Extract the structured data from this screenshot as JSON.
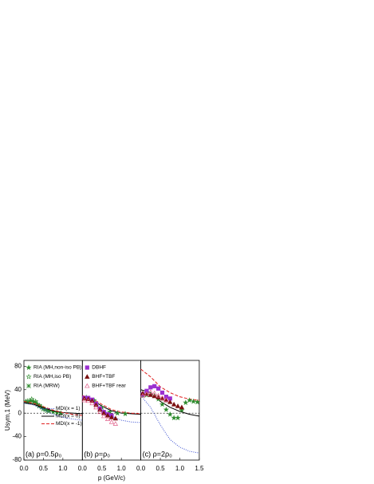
{
  "chart_data": [
    {
      "type": "line",
      "annotation": "(a) ρ=0.5ρ₀",
      "ylabel": "Usym,1 (MeV)",
      "legend": true,
      "xlim": [
        0,
        1.5
      ],
      "ylim": [
        -80,
        90
      ],
      "xticks": [
        {
          "value": 0,
          "label": "0.0"
        },
        {
          "value": 0.5,
          "label": "0.5"
        },
        {
          "value": 1,
          "label": "1.0"
        }
      ],
      "yticks": [
        -80,
        -40,
        0,
        40,
        80
      ],
      "series": [
        {
          "name": "RIA (MH,non-iso PB)",
          "color": "#2e8b2e",
          "marker": "star",
          "x": [
            0.05,
            0.15,
            0.25,
            0.35,
            0.45,
            0.55,
            0.65,
            0.75,
            0.85,
            0.95
          ],
          "values": [
            20,
            20,
            19,
            15,
            10,
            6,
            4,
            2,
            1,
            0
          ]
        },
        {
          "name": "RIA (MH,iso PB)",
          "color": "#2e8b2e",
          "marker": "open-star",
          "x": [
            0.1,
            0.2,
            0.3,
            0.4,
            0.5
          ],
          "values": [
            21,
            24,
            20,
            13,
            8
          ]
        },
        {
          "name": "RIA (MRW)",
          "color": "#2e8b2e",
          "marker": "x-star",
          "x": [
            0.1,
            0.2,
            0.3,
            0.4,
            0.5,
            0.6
          ],
          "values": [
            19,
            21,
            18,
            12,
            7,
            4
          ]
        },
        {
          "name": "MDI(x = 1)",
          "color": "#3a4fd0",
          "style": "dotted",
          "x": [
            0,
            0.25,
            0.5,
            0.75,
            1,
            1.25,
            1.5
          ],
          "values": [
            17,
            14,
            6,
            -2,
            -7,
            -10,
            -12
          ]
        },
        {
          "name": "MDI(x = 0)",
          "color": "#000000",
          "style": "solid",
          "x": [
            0,
            0.25,
            0.5,
            0.75,
            1,
            1.25,
            1.5
          ],
          "values": [
            18,
            15,
            9,
            4,
            1,
            0,
            -1
          ]
        },
        {
          "name": "MDI(x = -1)",
          "color": "#e02020",
          "style": "dashed",
          "x": [
            0,
            0.25,
            0.5,
            0.75,
            1,
            1.25,
            1.5
          ],
          "values": [
            20,
            17,
            11,
            5,
            1,
            -2,
            -4
          ]
        }
      ]
    },
    {
      "type": "line",
      "annotation": "(b) ρ=ρ₀",
      "xlabel": "p (GeV/c)",
      "legend": true,
      "xlim": [
        0,
        1.5
      ],
      "ylim": [
        -80,
        90
      ],
      "xticks": [
        {
          "value": 0,
          "label": "0.0"
        },
        {
          "value": 0.5,
          "label": "0.5"
        },
        {
          "value": 1,
          "label": "1.0"
        }
      ],
      "series": [
        {
          "color": "#3a4fd0",
          "style": "dotted",
          "x": [
            0,
            0.25,
            0.5,
            0.75,
            1,
            1.25,
            1.5
          ],
          "values": [
            28,
            22,
            8,
            -5,
            -12,
            -15,
            -16
          ]
        },
        {
          "color": "#000000",
          "style": "solid",
          "x": [
            0,
            0.25,
            0.5,
            0.75,
            1,
            1.25,
            1.5
          ],
          "values": [
            28,
            23,
            12,
            4,
            0,
            -1,
            -2
          ]
        },
        {
          "color": "#e02020",
          "style": "dashed",
          "x": [
            0,
            0.25,
            0.5,
            0.75,
            1,
            1.25,
            1.5
          ],
          "values": [
            30,
            25,
            15,
            6,
            2,
            0,
            -1
          ]
        },
        {
          "color": "#2e8b2e",
          "marker": "star",
          "x": [
            0.1,
            0.3,
            0.5,
            0.7,
            0.9,
            1.1
          ],
          "values": [
            27,
            22,
            10,
            2,
            0,
            -1
          ]
        },
        {
          "name": "DBHF",
          "color": "#9b30d0",
          "marker": "square",
          "x": [
            0.05,
            0.15,
            0.25,
            0.35,
            0.45,
            0.55,
            0.65,
            0.75
          ],
          "values": [
            26,
            26,
            23,
            16,
            8,
            2,
            -2,
            -4
          ]
        },
        {
          "name": "BHF+TBF",
          "color": "#7a1010",
          "marker": "triangle",
          "x": [
            0.05,
            0.15,
            0.25,
            0.35,
            0.45,
            0.55,
            0.65,
            0.75,
            0.85
          ],
          "values": [
            25,
            24,
            21,
            14,
            6,
            0,
            -4,
            -7,
            -9
          ]
        },
        {
          "name": "BHF+TBF rear",
          "color": "#e0608a",
          "marker": "open-triangle",
          "x": [
            0.05,
            0.15,
            0.25,
            0.35,
            0.45,
            0.55,
            0.65,
            0.75,
            0.85
          ],
          "values": [
            22,
            21,
            17,
            10,
            2,
            -5,
            -10,
            -15,
            -18
          ]
        }
      ]
    },
    {
      "type": "line",
      "annotation": "(c) ρ=2ρ₀",
      "xlim": [
        0,
        1.5
      ],
      "ylim": [
        -80,
        90
      ],
      "xticks": [
        {
          "value": 0,
          "label": "0.0"
        },
        {
          "value": 0.5,
          "label": "0.5"
        },
        {
          "value": 1,
          "label": "1.0"
        },
        1.5
      ],
      "series": [
        {
          "color": "#3a4fd0",
          "style": "dotted",
          "x": [
            0,
            0.25,
            0.5,
            0.75,
            1,
            1.25,
            1.5
          ],
          "values": [
            30,
            10,
            -20,
            -45,
            -58,
            -65,
            -68
          ]
        },
        {
          "color": "#000000",
          "style": "solid",
          "x": [
            0,
            0.25,
            0.5,
            0.75,
            1,
            1.25,
            1.5
          ],
          "values": [
            40,
            35,
            20,
            10,
            3,
            -2,
            -5
          ]
        },
        {
          "color": "#e02020",
          "style": "dashed",
          "x": [
            0,
            0.25,
            0.5,
            0.75,
            1,
            1.25,
            1.5
          ],
          "values": [
            75,
            62,
            45,
            35,
            28,
            24,
            22
          ]
        },
        {
          "color": "#2e8b2e",
          "marker": "star",
          "x": [
            0.05,
            0.15,
            0.25,
            0.35,
            0.45,
            0.55,
            0.65,
            0.75,
            0.85,
            0.95,
            1.05,
            1.15,
            1.25,
            1.35,
            1.45
          ],
          "values": [
            30,
            31,
            32,
            30,
            24,
            15,
            6,
            -2,
            -8,
            -8,
            5,
            18,
            22,
            20,
            19
          ]
        },
        {
          "color": "#9b30d0",
          "marker": "square",
          "x": [
            0.05,
            0.15,
            0.25,
            0.35,
            0.45,
            0.55,
            0.65,
            0.75
          ],
          "values": [
            32,
            38,
            44,
            46,
            42,
            35,
            28,
            25
          ]
        },
        {
          "color": "#7a1010",
          "marker": "triangle",
          "x": [
            0.05,
            0.15,
            0.25,
            0.35,
            0.45,
            0.55,
            0.65,
            0.75,
            0.85,
            0.95,
            1.05
          ],
          "values": [
            34,
            33,
            31,
            29,
            27,
            25,
            22,
            19,
            15,
            12,
            10
          ]
        },
        {
          "color": "#e0608a",
          "marker": "open-triangle",
          "x": [
            0.05,
            0.15,
            0.25,
            0.35,
            0.45,
            0.55,
            0.65
          ],
          "values": [
            30,
            33,
            36,
            34,
            30,
            26,
            23
          ]
        }
      ]
    }
  ]
}
